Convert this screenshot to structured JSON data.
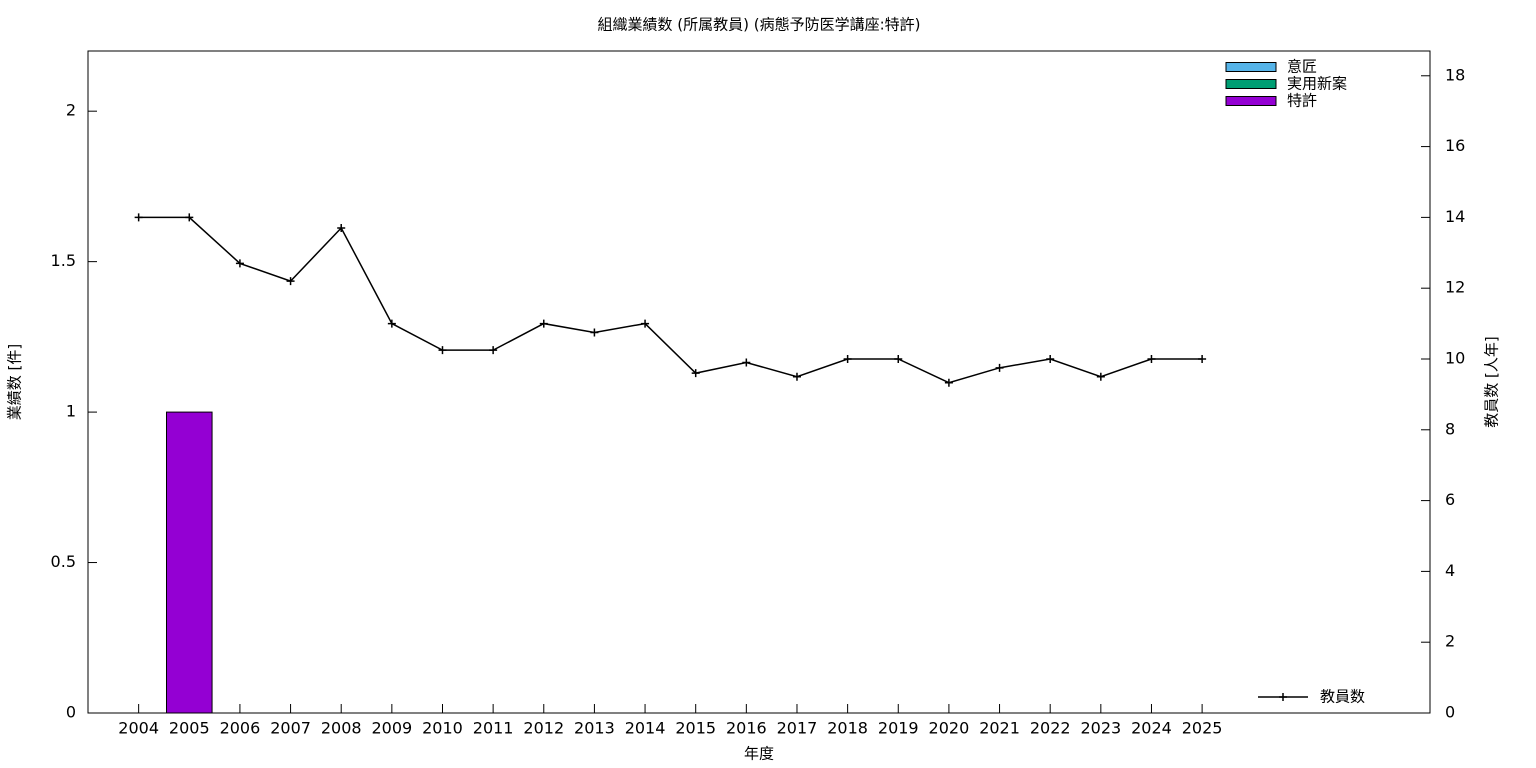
{
  "chart_data": {
    "type": "bar",
    "title": "組織業績数 (所属教員) (病態予防医学講座:特許)",
    "xlabel": "年度",
    "ylabel": "業績数 [件]",
    "y2label": "教員数 [人年]",
    "categories": [
      "2004",
      "2005",
      "2006",
      "2007",
      "2008",
      "2009",
      "2010",
      "2011",
      "2012",
      "2013",
      "2014",
      "2015",
      "2016",
      "2017",
      "2018",
      "2019",
      "2020",
      "2021",
      "2022",
      "2023",
      "2024",
      "2025"
    ],
    "stacked": true,
    "series": [
      {
        "name": "意匠",
        "color": "#56b4e9",
        "values": [
          0,
          0,
          0,
          0,
          0,
          0,
          0,
          0,
          0,
          0,
          0,
          0,
          0,
          0,
          0,
          0,
          0,
          0,
          0,
          0,
          0,
          0
        ]
      },
      {
        "name": "実用新案",
        "color": "#009e73",
        "values": [
          0,
          0,
          0,
          0,
          0,
          0,
          0,
          0,
          0,
          0,
          0,
          0,
          0,
          0,
          0,
          0,
          0,
          0,
          0,
          0,
          0,
          0
        ]
      },
      {
        "name": "特許",
        "color": "#9400d3",
        "values": [
          0,
          1,
          0,
          0,
          0,
          0,
          0,
          0,
          0,
          0,
          0,
          0,
          0,
          0,
          0,
          0,
          0,
          0,
          0,
          0,
          0,
          0
        ]
      },
      {
        "name": "教員数",
        "type": "line",
        "axis": "y2",
        "color": "#000000",
        "values": [
          14,
          14,
          12.7,
          12.2,
          13.7,
          11,
          10.25,
          10.25,
          11,
          10.75,
          11,
          9.6,
          9.9,
          9.5,
          10,
          10,
          9.33,
          9.75,
          10,
          9.5,
          10,
          10
        ]
      }
    ],
    "ylim": [
      0,
      2.2
    ],
    "yticks": [
      0,
      0.5,
      1,
      1.5,
      2
    ],
    "y2lim": [
      0,
      18.7
    ],
    "y2ticks": [
      0,
      2,
      4,
      6,
      8,
      10,
      12,
      14,
      16,
      18
    ],
    "legend": "top-right"
  }
}
